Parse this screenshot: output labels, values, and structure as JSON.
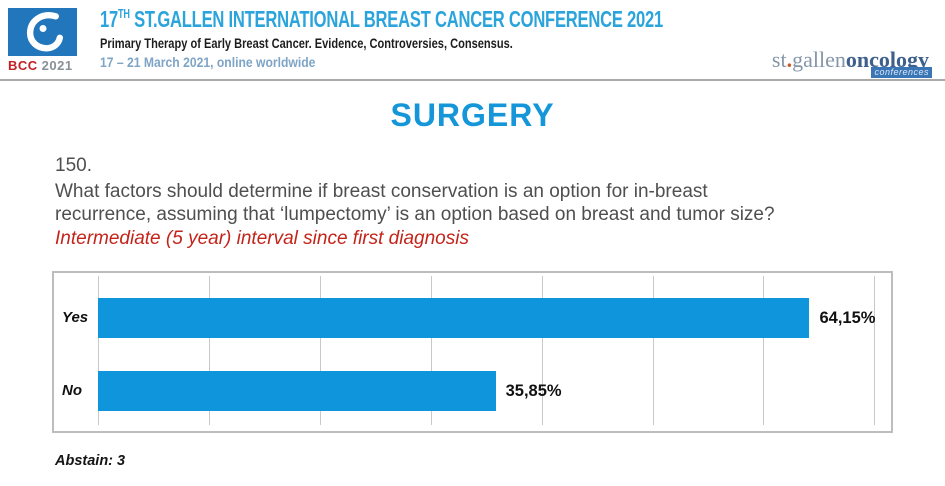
{
  "header": {
    "logo": {
      "bcc": "BCC",
      "year": "2021"
    },
    "title_num": "17",
    "title_sup": "TH",
    "title_rest": " ST.GALLEN INTERNATIONAL BREAST CANCER CONFERENCE 2021",
    "subtitle": "Primary Therapy of Early Breast Cancer. Evidence, Controversies, Consensus.",
    "dates": "17 – 21 March 2021, online worldwide",
    "org_logo": {
      "st": "st",
      "dot": ".",
      "gallen": "gallen",
      "oncology": "oncology",
      "tag": "conferences"
    }
  },
  "main": {
    "section_title": "SURGERY",
    "question_number": "150.",
    "question_lines": [
      "What factors should determine if breast conservation is an option for in-breast",
      "recurrence, assuming that ‘lumpectomy’ is an option based on breast and tumor size?"
    ],
    "highlight": "Intermediate (5 year) interval since first diagnosis",
    "abstain": "Abstain: 3"
  },
  "chart_data": {
    "type": "bar",
    "orientation": "horizontal",
    "title": "",
    "categories": [
      "Yes",
      "No"
    ],
    "values": [
      64.15,
      35.85
    ],
    "value_labels": [
      "64,15%",
      "35,85%"
    ],
    "xlim": [
      0,
      70
    ],
    "xticks": [
      0,
      10,
      20,
      30,
      40,
      50,
      60,
      70
    ],
    "grid": true,
    "legend": false,
    "bar_color": "#0E95DC",
    "abstain_count": 3
  },
  "colors": {
    "accent_blue": "#1496D8",
    "header_blue": "#2BA4DC",
    "bar_blue": "#0E95DC",
    "highlight_red": "#C3241A",
    "bcc_red": "#C22026",
    "logo_square_blue": "#2176BC"
  }
}
